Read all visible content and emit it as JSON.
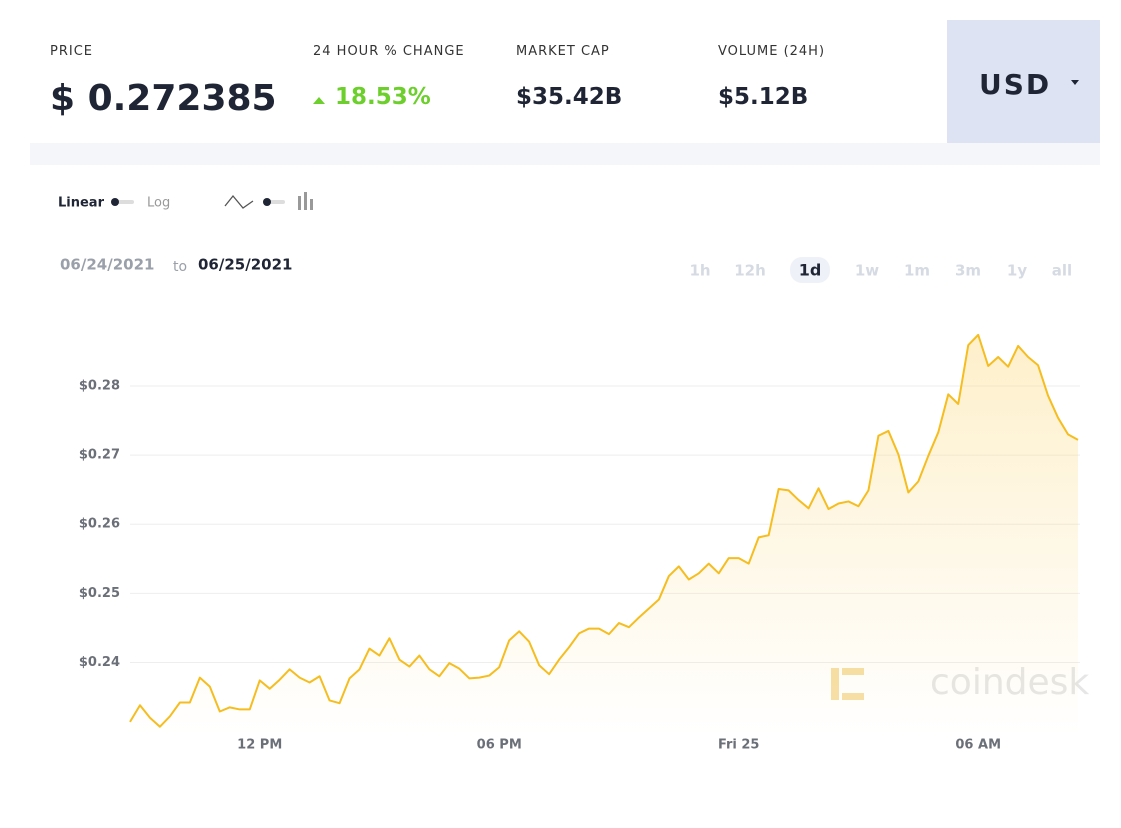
{
  "header": {
    "price_label": "PRICE",
    "price": "$ 0.272385",
    "change_label": "24 HOUR % CHANGE",
    "change": "18.53%",
    "market_cap_label": "MARKET CAP",
    "market_cap": "$35.42B",
    "volume_label": "VOLUME (24H)",
    "volume": "$5.12B",
    "currency": "USD"
  },
  "controls": {
    "scale_options": [
      "Linear",
      "Log"
    ],
    "date_from": "06/24/2021",
    "date_sep": "to",
    "date_to": "06/25/2021",
    "ranges": [
      "1h",
      "12h",
      "1d",
      "1w",
      "1m",
      "3m",
      "1y",
      "all"
    ],
    "active_range": "1d"
  },
  "watermark": "coindesk",
  "chart_data": {
    "type": "line",
    "color": "#f5bd1f",
    "grid": true,
    "area": true,
    "categories": [
      null,
      null,
      null,
      null,
      null,
      null,
      null,
      null,
      null,
      null,
      null,
      null,
      null,
      "12 PM",
      null,
      null,
      null,
      null,
      null,
      null,
      null,
      null,
      null,
      null,
      null,
      null,
      null,
      null,
      null,
      null,
      null,
      null,
      null,
      null,
      null,
      null,
      null,
      "06 PM",
      null,
      null,
      null,
      null,
      null,
      null,
      null,
      null,
      null,
      null,
      null,
      null,
      null,
      null,
      null,
      null,
      null,
      null,
      null,
      null,
      null,
      null,
      null,
      "Fri 25",
      null,
      null,
      null,
      null,
      null,
      null,
      null,
      null,
      null,
      null,
      null,
      null,
      null,
      null,
      null,
      null,
      null,
      null,
      null,
      null,
      null,
      null,
      null,
      "06 AM",
      null,
      null,
      null,
      null,
      null,
      null,
      null,
      null,
      null,
      null
    ],
    "values": [
      0.2314,
      0.2338,
      0.232,
      0.2307,
      0.2322,
      0.2342,
      0.2342,
      0.2378,
      0.2365,
      0.2329,
      0.2335,
      0.2332,
      0.2332,
      0.2374,
      0.2362,
      0.2375,
      0.239,
      0.2378,
      0.2371,
      0.238,
      0.2345,
      0.2341,
      0.2377,
      0.239,
      0.242,
      0.241,
      0.2435,
      0.2404,
      0.2394,
      0.241,
      0.239,
      0.238,
      0.2399,
      0.2391,
      0.2377,
      0.2378,
      0.2381,
      0.2393,
      0.2432,
      0.2445,
      0.243,
      0.2396,
      0.2383,
      0.2404,
      0.2422,
      0.2442,
      0.2449,
      0.2449,
      0.2441,
      0.2457,
      0.2451,
      0.2465,
      0.2478,
      0.2491,
      0.2525,
      0.2539,
      0.252,
      0.2529,
      0.2543,
      0.2529,
      0.2551,
      0.2551,
      0.2543,
      0.2581,
      0.2584,
      0.2651,
      0.2649,
      0.2635,
      0.2623,
      0.2652,
      0.2622,
      0.263,
      0.2633,
      0.2626,
      0.2649,
      0.2728,
      0.2735,
      0.2701,
      0.2646,
      0.2662,
      0.2699,
      0.2733,
      0.2788,
      0.2774,
      0.2859,
      0.2874,
      0.2829,
      0.2842,
      0.2828,
      0.2858,
      0.2842,
      0.283,
      0.2786,
      0.2754,
      0.273,
      0.2722
    ],
    "ylim": [
      0.2295,
      0.291
    ],
    "yticks": [
      {
        "value": 0.24,
        "label": "$0.24"
      },
      {
        "value": 0.25,
        "label": "$0.25"
      },
      {
        "value": 0.26,
        "label": "$0.26"
      },
      {
        "value": 0.27,
        "label": "$0.27"
      },
      {
        "value": 0.28,
        "label": "$0.28"
      }
    ]
  }
}
